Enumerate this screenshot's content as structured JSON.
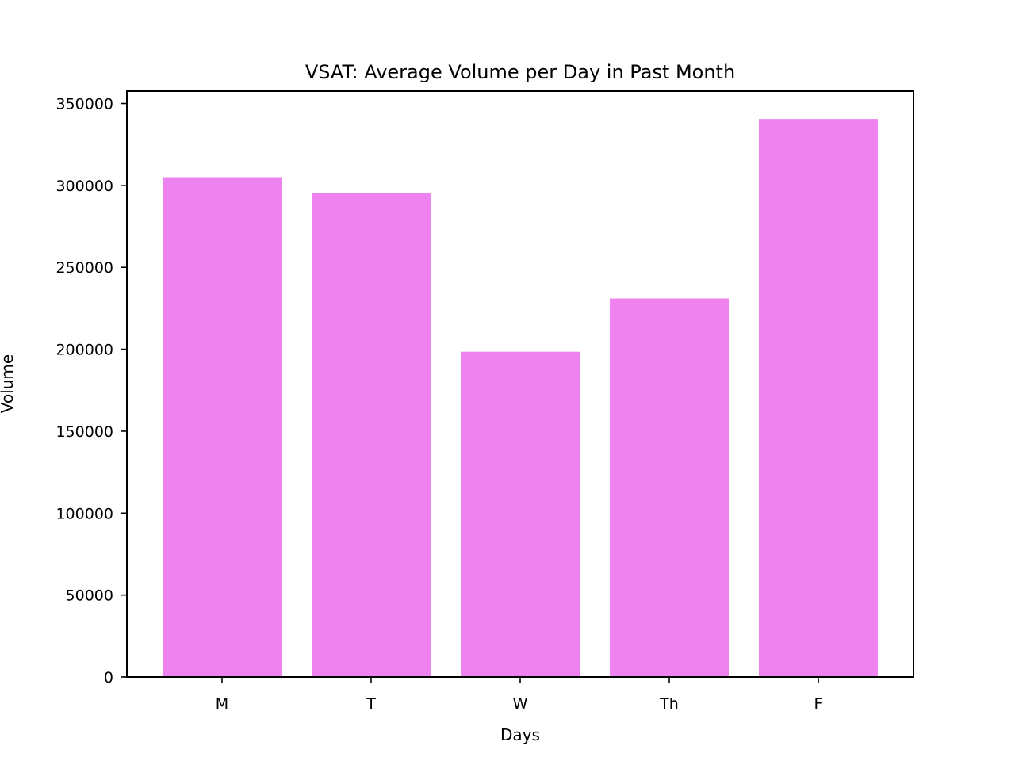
{
  "chart_data": {
    "type": "bar",
    "title": "VSAT: Average Volume per Day in Past Month",
    "xlabel": "Days",
    "ylabel": "Volume",
    "categories": [
      "M",
      "T",
      "W",
      "Th",
      "F"
    ],
    "values": [
      305000,
      295500,
      198500,
      231000,
      340500
    ],
    "ylim": [
      0,
      357500
    ],
    "yticks": [
      0,
      50000,
      100000,
      150000,
      200000,
      250000,
      300000,
      350000
    ],
    "bar_color": "#ee82ee",
    "grid": false,
    "legend": "none"
  }
}
